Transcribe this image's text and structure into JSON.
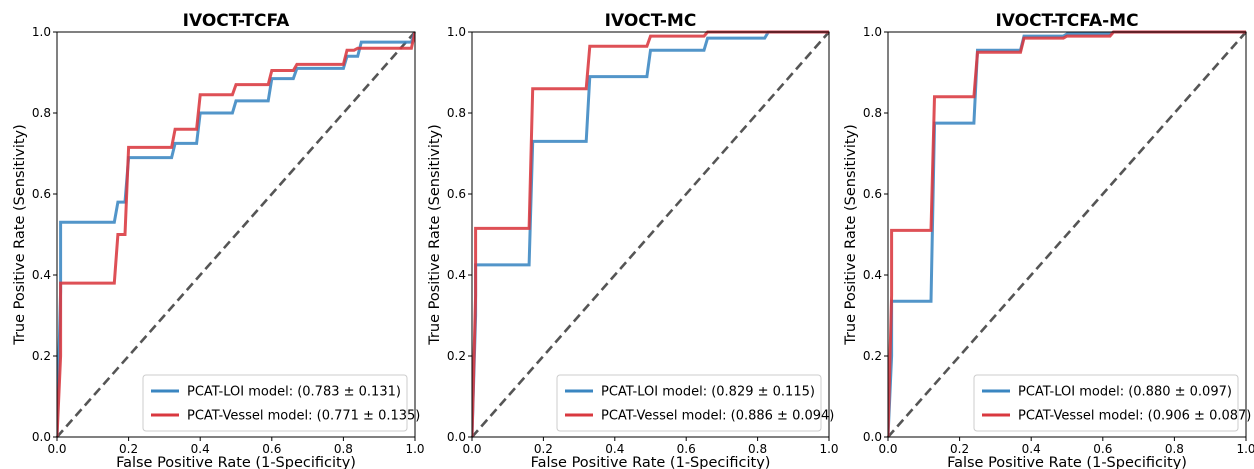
{
  "figure": {
    "background": "#ffffff"
  },
  "chart_data": [
    {
      "type": "line",
      "title": "IVOCT-TCFA",
      "xlabel": "False Positive Rate (1-Specificity)",
      "ylabel": "True Positive Rate (Sensitivity)",
      "xlim": [
        0,
        1
      ],
      "ylim": [
        0,
        1
      ],
      "xticks": [
        "0.0",
        "0.2",
        "0.4",
        "0.6",
        "0.8",
        "1.0"
      ],
      "yticks": [
        "0.0",
        "0.2",
        "0.4",
        "0.6",
        "0.8",
        "1.0"
      ],
      "grid": false,
      "legend_position": "lower-right",
      "reference_line": {
        "x": [
          0,
          1
        ],
        "y": [
          0,
          1
        ],
        "color": "#555555",
        "style": "dashed"
      },
      "series": [
        {
          "name": "PCAT-LOI model: (0.783 ± 0.131)",
          "color": "#3a86c1",
          "x": [
            0,
            0.01,
            0.01,
            0.16,
            0.17,
            0.19,
            0.2,
            0.32,
            0.33,
            0.39,
            0.4,
            0.49,
            0.5,
            0.59,
            0.6,
            0.66,
            0.67,
            0.8,
            0.81,
            0.84,
            0.85,
            0.99,
            1.0
          ],
          "y": [
            0,
            0.36,
            0.53,
            0.53,
            0.58,
            0.58,
            0.69,
            0.69,
            0.725,
            0.725,
            0.8,
            0.8,
            0.83,
            0.83,
            0.885,
            0.885,
            0.91,
            0.91,
            0.94,
            0.94,
            0.975,
            0.975,
            1.0
          ]
        },
        {
          "name": "PCAT-Vessel model: (0.771 ± 0.135)",
          "color": "#d9383f",
          "x": [
            0,
            0.01,
            0.01,
            0.16,
            0.17,
            0.19,
            0.2,
            0.32,
            0.33,
            0.39,
            0.4,
            0.49,
            0.5,
            0.59,
            0.6,
            0.66,
            0.67,
            0.8,
            0.81,
            0.83,
            0.84,
            0.99,
            1.0
          ],
          "y": [
            0,
            0.2,
            0.38,
            0.38,
            0.5,
            0.5,
            0.715,
            0.715,
            0.76,
            0.76,
            0.845,
            0.845,
            0.87,
            0.87,
            0.905,
            0.905,
            0.92,
            0.92,
            0.955,
            0.955,
            0.96,
            0.96,
            1.0
          ]
        }
      ]
    },
    {
      "type": "line",
      "title": "IVOCT-MC",
      "xlabel": "False Positive Rate (1-Specificity)",
      "ylabel": "True Positive Rate (Sensitivity)",
      "xlim": [
        0,
        1
      ],
      "ylim": [
        0,
        1
      ],
      "xticks": [
        "0.0",
        "0.2",
        "0.4",
        "0.6",
        "0.8",
        "1.0"
      ],
      "yticks": [
        "0.0",
        "0.2",
        "0.4",
        "0.6",
        "0.8",
        "1.0"
      ],
      "grid": false,
      "legend_position": "lower-right",
      "reference_line": {
        "x": [
          0,
          1
        ],
        "y": [
          0,
          1
        ],
        "color": "#555555",
        "style": "dashed"
      },
      "series": [
        {
          "name": "PCAT-LOI model: (0.829 ± 0.115)",
          "color": "#3a86c1",
          "x": [
            0,
            0.01,
            0.01,
            0.16,
            0.17,
            0.32,
            0.33,
            0.49,
            0.5,
            0.65,
            0.66,
            0.82,
            0.83,
            1.0
          ],
          "y": [
            0,
            0.3,
            0.425,
            0.425,
            0.73,
            0.73,
            0.89,
            0.89,
            0.955,
            0.955,
            0.985,
            0.985,
            1.0,
            1.0
          ]
        },
        {
          "name": "PCAT-Vessel model: (0.886 ± 0.094)",
          "color": "#d9383f",
          "x": [
            0,
            0.01,
            0.01,
            0.16,
            0.17,
            0.32,
            0.33,
            0.49,
            0.5,
            0.65,
            0.66,
            1.0
          ],
          "y": [
            0,
            0.35,
            0.515,
            0.515,
            0.86,
            0.86,
            0.965,
            0.965,
            0.99,
            0.99,
            1.0,
            1.0
          ]
        }
      ]
    },
    {
      "type": "line",
      "title": "IVOCT-TCFA-MC",
      "xlabel": "False Positive Rate (1-Specificity)",
      "ylabel": "True Positive Rate (Sensitivity)",
      "xlim": [
        0,
        1
      ],
      "ylim": [
        0,
        1
      ],
      "xticks": [
        "0.0",
        "0.2",
        "0.4",
        "0.6",
        "0.8",
        "1.0"
      ],
      "yticks": [
        "0.0",
        "0.2",
        "0.4",
        "0.6",
        "0.8",
        "1.0"
      ],
      "grid": false,
      "legend_position": "lower-right",
      "reference_line": {
        "x": [
          0,
          1
        ],
        "y": [
          0,
          1
        ],
        "color": "#555555",
        "style": "dashed"
      },
      "series": [
        {
          "name": "PCAT-LOI model: (0.880 ± 0.097)",
          "color": "#3a86c1",
          "x": [
            0,
            0.01,
            0.01,
            0.12,
            0.13,
            0.24,
            0.25,
            0.37,
            0.38,
            0.49,
            0.5,
            0.62,
            0.63,
            1.0
          ],
          "y": [
            0,
            0.2,
            0.335,
            0.335,
            0.775,
            0.775,
            0.955,
            0.955,
            0.99,
            0.99,
            0.995,
            0.995,
            1.0,
            1.0
          ]
        },
        {
          "name": "PCAT-Vessel model: (0.906 ± 0.087)",
          "color": "#d9383f",
          "x": [
            0,
            0.01,
            0.01,
            0.12,
            0.13,
            0.24,
            0.25,
            0.37,
            0.38,
            0.49,
            0.5,
            0.62,
            0.63,
            1.0
          ],
          "y": [
            0,
            0.35,
            0.51,
            0.51,
            0.84,
            0.84,
            0.95,
            0.95,
            0.985,
            0.985,
            0.99,
            0.99,
            1.0,
            1.0
          ]
        }
      ]
    }
  ]
}
